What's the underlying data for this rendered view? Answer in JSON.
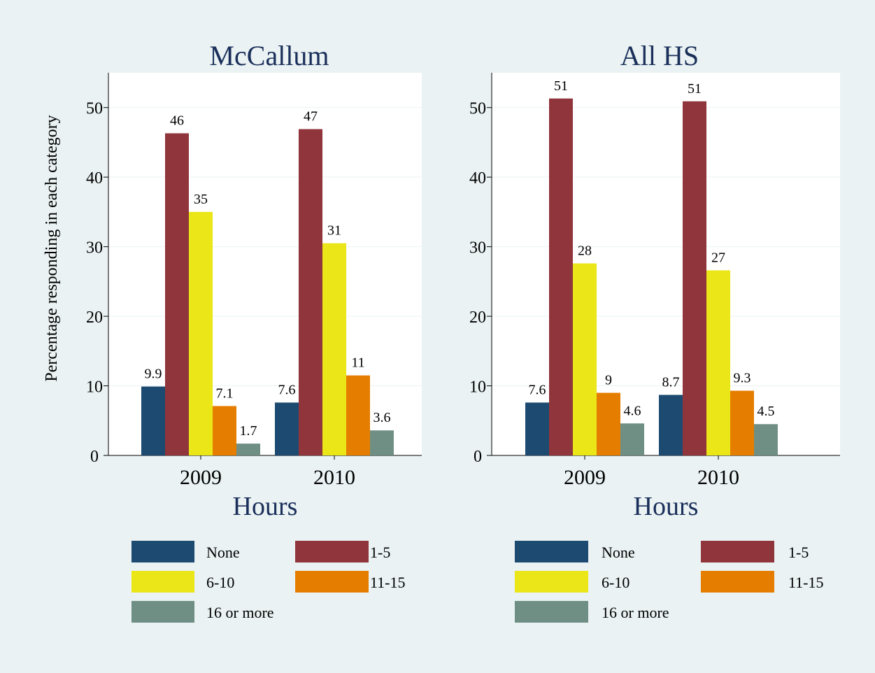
{
  "colors": {
    "none": "#1c4a70",
    "1-5": "#90353b",
    "6-10": "#eae617",
    "11-15": "#e57e00",
    "16 or more": "#6f8f85",
    "title": "#1a2f5a",
    "plot_background": "#ffffff",
    "figure_background": "#eaf2f3"
  },
  "y_axis_label": "Percentage responding in each category",
  "chart_data": [
    {
      "type": "bar",
      "title": "McCallum",
      "xlabel": "Hours",
      "ylabel": "Percentage responding in each category",
      "categories": [
        "2009",
        "2010"
      ],
      "ylim": [
        0,
        55
      ],
      "yticks": [
        "0",
        "10",
        "20",
        "30",
        "40",
        "50"
      ],
      "grid": true,
      "legend_position": "bottom",
      "series": [
        {
          "name": "None",
          "values": [
            9.9,
            7.6
          ],
          "labels": [
            "9.9",
            "7.6"
          ]
        },
        {
          "name": "1-5",
          "values": [
            46.3,
            46.9
          ],
          "labels": [
            "46",
            "47"
          ]
        },
        {
          "name": "6-10",
          "values": [
            35.0,
            30.5
          ],
          "labels": [
            "35",
            "31"
          ]
        },
        {
          "name": "11-15",
          "values": [
            7.1,
            11.5
          ],
          "labels": [
            "7.1",
            "11"
          ]
        },
        {
          "name": "16 or more",
          "values": [
            1.7,
            3.6
          ],
          "labels": [
            "1.7",
            "3.6"
          ]
        }
      ]
    },
    {
      "type": "bar",
      "title": "All HS",
      "xlabel": "Hours",
      "ylabel": "",
      "categories": [
        "2009",
        "2010"
      ],
      "ylim": [
        0,
        55
      ],
      "yticks": [
        "0",
        "10",
        "20",
        "30",
        "40",
        "50"
      ],
      "grid": true,
      "legend_position": "bottom",
      "series": [
        {
          "name": "None",
          "values": [
            7.6,
            8.7
          ],
          "labels": [
            "7.6",
            "8.7"
          ]
        },
        {
          "name": "1-5",
          "values": [
            51.3,
            50.9
          ],
          "labels": [
            "51",
            "51"
          ]
        },
        {
          "name": "6-10",
          "values": [
            27.6,
            26.6
          ],
          "labels": [
            "28",
            "27"
          ]
        },
        {
          "name": "11-15",
          "values": [
            9.0,
            9.3
          ],
          "labels": [
            "9",
            "9.3"
          ]
        },
        {
          "name": "16 or more",
          "values": [
            4.6,
            4.5
          ],
          "labels": [
            "4.6",
            "4.5"
          ]
        }
      ]
    }
  ]
}
